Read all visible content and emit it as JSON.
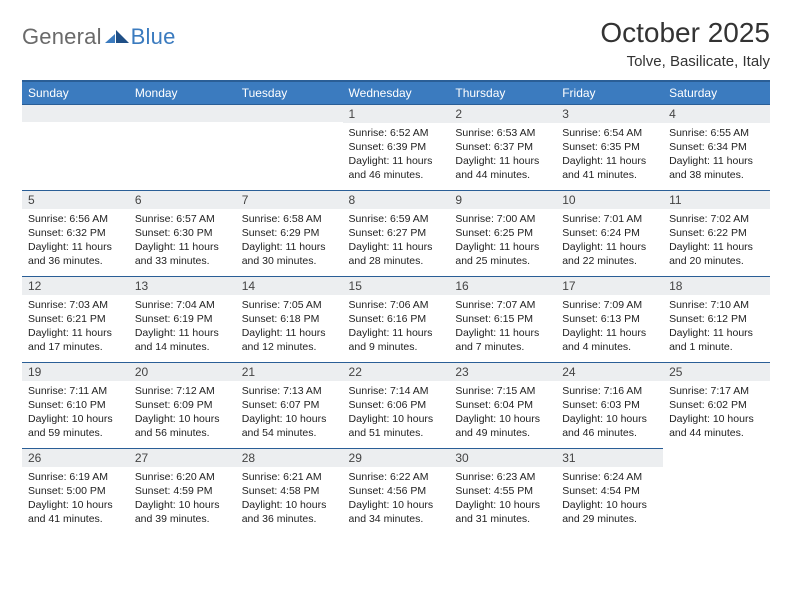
{
  "brand": {
    "general": "General",
    "blue": "Blue"
  },
  "title": "October 2025",
  "location": "Tolve, Basilicate, Italy",
  "colors": {
    "header_bg": "#3b7bbf",
    "header_border": "#2a5e96",
    "daynum_bg": "#eceef0",
    "text": "#222222",
    "logo_gray": "#6a6a6a",
    "logo_blue": "#3b7bbf"
  },
  "weekdays": [
    "Sunday",
    "Monday",
    "Tuesday",
    "Wednesday",
    "Thursday",
    "Friday",
    "Saturday"
  ],
  "weeks": [
    [
      null,
      null,
      null,
      {
        "n": "1",
        "sunrise": "Sunrise: 6:52 AM",
        "sunset": "Sunset: 6:39 PM",
        "day1": "Daylight: 11 hours",
        "day2": "and 46 minutes."
      },
      {
        "n": "2",
        "sunrise": "Sunrise: 6:53 AM",
        "sunset": "Sunset: 6:37 PM",
        "day1": "Daylight: 11 hours",
        "day2": "and 44 minutes."
      },
      {
        "n": "3",
        "sunrise": "Sunrise: 6:54 AM",
        "sunset": "Sunset: 6:35 PM",
        "day1": "Daylight: 11 hours",
        "day2": "and 41 minutes."
      },
      {
        "n": "4",
        "sunrise": "Sunrise: 6:55 AM",
        "sunset": "Sunset: 6:34 PM",
        "day1": "Daylight: 11 hours",
        "day2": "and 38 minutes."
      }
    ],
    [
      {
        "n": "5",
        "sunrise": "Sunrise: 6:56 AM",
        "sunset": "Sunset: 6:32 PM",
        "day1": "Daylight: 11 hours",
        "day2": "and 36 minutes."
      },
      {
        "n": "6",
        "sunrise": "Sunrise: 6:57 AM",
        "sunset": "Sunset: 6:30 PM",
        "day1": "Daylight: 11 hours",
        "day2": "and 33 minutes."
      },
      {
        "n": "7",
        "sunrise": "Sunrise: 6:58 AM",
        "sunset": "Sunset: 6:29 PM",
        "day1": "Daylight: 11 hours",
        "day2": "and 30 minutes."
      },
      {
        "n": "8",
        "sunrise": "Sunrise: 6:59 AM",
        "sunset": "Sunset: 6:27 PM",
        "day1": "Daylight: 11 hours",
        "day2": "and 28 minutes."
      },
      {
        "n": "9",
        "sunrise": "Sunrise: 7:00 AM",
        "sunset": "Sunset: 6:25 PM",
        "day1": "Daylight: 11 hours",
        "day2": "and 25 minutes."
      },
      {
        "n": "10",
        "sunrise": "Sunrise: 7:01 AM",
        "sunset": "Sunset: 6:24 PM",
        "day1": "Daylight: 11 hours",
        "day2": "and 22 minutes."
      },
      {
        "n": "11",
        "sunrise": "Sunrise: 7:02 AM",
        "sunset": "Sunset: 6:22 PM",
        "day1": "Daylight: 11 hours",
        "day2": "and 20 minutes."
      }
    ],
    [
      {
        "n": "12",
        "sunrise": "Sunrise: 7:03 AM",
        "sunset": "Sunset: 6:21 PM",
        "day1": "Daylight: 11 hours",
        "day2": "and 17 minutes."
      },
      {
        "n": "13",
        "sunrise": "Sunrise: 7:04 AM",
        "sunset": "Sunset: 6:19 PM",
        "day1": "Daylight: 11 hours",
        "day2": "and 14 minutes."
      },
      {
        "n": "14",
        "sunrise": "Sunrise: 7:05 AM",
        "sunset": "Sunset: 6:18 PM",
        "day1": "Daylight: 11 hours",
        "day2": "and 12 minutes."
      },
      {
        "n": "15",
        "sunrise": "Sunrise: 7:06 AM",
        "sunset": "Sunset: 6:16 PM",
        "day1": "Daylight: 11 hours",
        "day2": "and 9 minutes."
      },
      {
        "n": "16",
        "sunrise": "Sunrise: 7:07 AM",
        "sunset": "Sunset: 6:15 PM",
        "day1": "Daylight: 11 hours",
        "day2": "and 7 minutes."
      },
      {
        "n": "17",
        "sunrise": "Sunrise: 7:09 AM",
        "sunset": "Sunset: 6:13 PM",
        "day1": "Daylight: 11 hours",
        "day2": "and 4 minutes."
      },
      {
        "n": "18",
        "sunrise": "Sunrise: 7:10 AM",
        "sunset": "Sunset: 6:12 PM",
        "day1": "Daylight: 11 hours",
        "day2": "and 1 minute."
      }
    ],
    [
      {
        "n": "19",
        "sunrise": "Sunrise: 7:11 AM",
        "sunset": "Sunset: 6:10 PM",
        "day1": "Daylight: 10 hours",
        "day2": "and 59 minutes."
      },
      {
        "n": "20",
        "sunrise": "Sunrise: 7:12 AM",
        "sunset": "Sunset: 6:09 PM",
        "day1": "Daylight: 10 hours",
        "day2": "and 56 minutes."
      },
      {
        "n": "21",
        "sunrise": "Sunrise: 7:13 AM",
        "sunset": "Sunset: 6:07 PM",
        "day1": "Daylight: 10 hours",
        "day2": "and 54 minutes."
      },
      {
        "n": "22",
        "sunrise": "Sunrise: 7:14 AM",
        "sunset": "Sunset: 6:06 PM",
        "day1": "Daylight: 10 hours",
        "day2": "and 51 minutes."
      },
      {
        "n": "23",
        "sunrise": "Sunrise: 7:15 AM",
        "sunset": "Sunset: 6:04 PM",
        "day1": "Daylight: 10 hours",
        "day2": "and 49 minutes."
      },
      {
        "n": "24",
        "sunrise": "Sunrise: 7:16 AM",
        "sunset": "Sunset: 6:03 PM",
        "day1": "Daylight: 10 hours",
        "day2": "and 46 minutes."
      },
      {
        "n": "25",
        "sunrise": "Sunrise: 7:17 AM",
        "sunset": "Sunset: 6:02 PM",
        "day1": "Daylight: 10 hours",
        "day2": "and 44 minutes."
      }
    ],
    [
      {
        "n": "26",
        "sunrise": "Sunrise: 6:19 AM",
        "sunset": "Sunset: 5:00 PM",
        "day1": "Daylight: 10 hours",
        "day2": "and 41 minutes."
      },
      {
        "n": "27",
        "sunrise": "Sunrise: 6:20 AM",
        "sunset": "Sunset: 4:59 PM",
        "day1": "Daylight: 10 hours",
        "day2": "and 39 minutes."
      },
      {
        "n": "28",
        "sunrise": "Sunrise: 6:21 AM",
        "sunset": "Sunset: 4:58 PM",
        "day1": "Daylight: 10 hours",
        "day2": "and 36 minutes."
      },
      {
        "n": "29",
        "sunrise": "Sunrise: 6:22 AM",
        "sunset": "Sunset: 4:56 PM",
        "day1": "Daylight: 10 hours",
        "day2": "and 34 minutes."
      },
      {
        "n": "30",
        "sunrise": "Sunrise: 6:23 AM",
        "sunset": "Sunset: 4:55 PM",
        "day1": "Daylight: 10 hours",
        "day2": "and 31 minutes."
      },
      {
        "n": "31",
        "sunrise": "Sunrise: 6:24 AM",
        "sunset": "Sunset: 4:54 PM",
        "day1": "Daylight: 10 hours",
        "day2": "and 29 minutes."
      },
      null
    ]
  ]
}
